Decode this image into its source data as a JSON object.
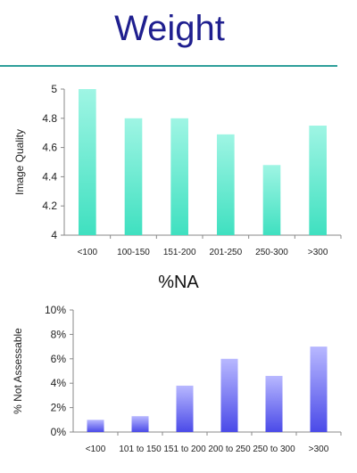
{
  "page": {
    "title": "Weight"
  },
  "chart_data": [
    {
      "type": "bar",
      "title": "",
      "xlabel": "",
      "ylabel": "Image Quality",
      "categories": [
        "<100",
        "100-150",
        "151-200",
        "201-250",
        "250-300",
        ">300"
      ],
      "values": [
        5.0,
        4.8,
        4.8,
        4.69,
        4.48,
        4.75
      ],
      "ylim": [
        4,
        5
      ],
      "yticks": [
        "4",
        "4.2",
        "4.4",
        "4.6",
        "4.8",
        "5"
      ],
      "ytick_values": [
        4,
        4.2,
        4.4,
        4.6,
        4.8,
        5
      ],
      "bar_color": "#3fe0c0",
      "grid": false
    },
    {
      "type": "bar",
      "title": "%NA",
      "xlabel": "",
      "ylabel": "% Not Assessable",
      "categories": [
        "<100",
        "101 to 150",
        "151 to 200",
        "200 to 250",
        "250 to 300",
        ">300"
      ],
      "values": [
        1.0,
        1.3,
        3.8,
        6.0,
        4.6,
        7.0
      ],
      "ylim": [
        0,
        10
      ],
      "yticks": [
        "0%",
        "2%",
        "4%",
        "6%",
        "8%",
        "10%"
      ],
      "ytick_values": [
        0,
        2,
        4,
        6,
        8,
        10
      ],
      "bar_color": "#4a4ae8",
      "grid": false
    }
  ]
}
